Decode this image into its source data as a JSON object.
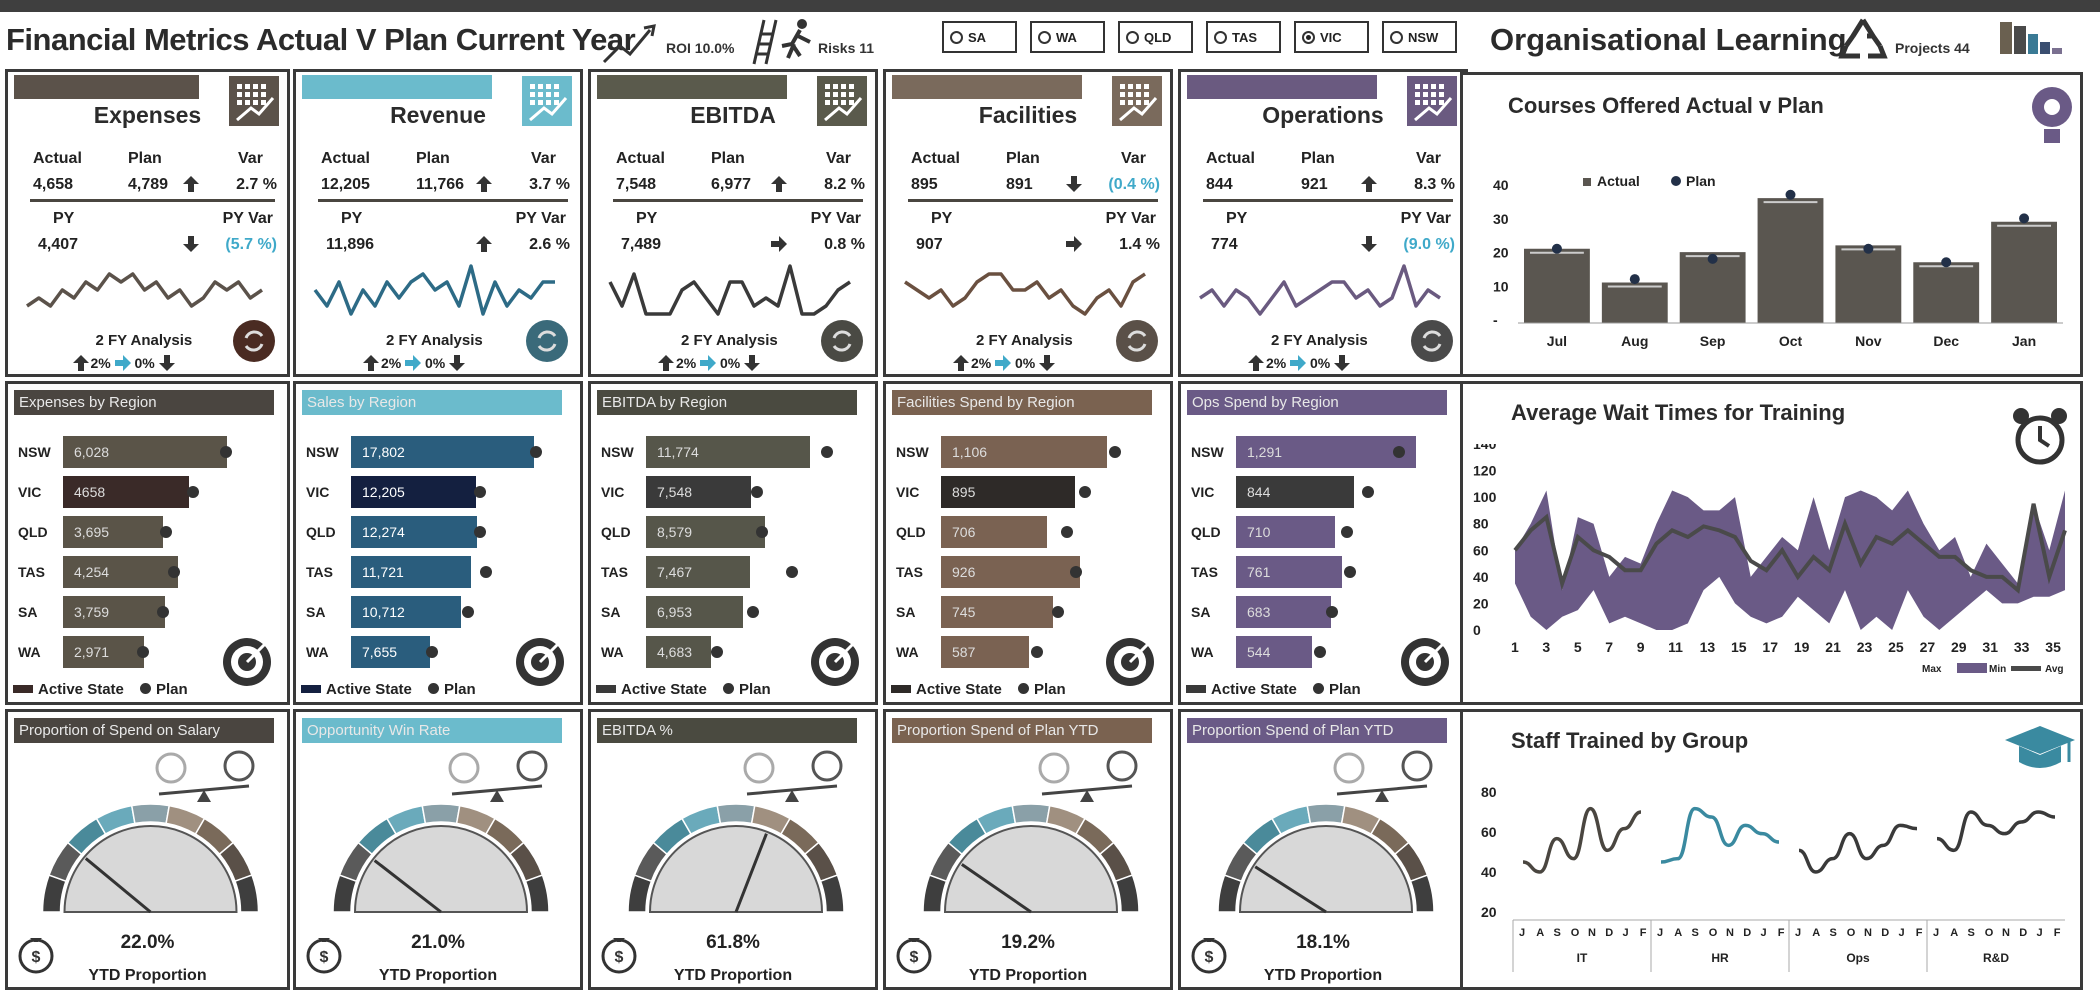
{
  "header": {
    "title": "Financial Metrics Actual V Plan Current Year",
    "roi": "ROI 10.0%",
    "risks": "Risks 11",
    "org_title": "Organisational Learning",
    "projects": "Projects 44",
    "states": [
      {
        "label": "SA",
        "selected": false
      },
      {
        "label": "WA",
        "selected": false
      },
      {
        "label": "QLD",
        "selected": false
      },
      {
        "label": "TAS",
        "selected": false
      },
      {
        "label": "VIC",
        "selected": true
      },
      {
        "label": "NSW",
        "selected": false
      }
    ]
  },
  "labels": {
    "actual": "Actual",
    "plan": "Plan",
    "var": "Var",
    "py": "PY",
    "py_var": "PY Var",
    "analysis": "2 FY Analysis",
    "up_pct": "2%",
    "flat_pct": "0%",
    "active_state": "Active State",
    "plan_legend": "Plan",
    "ytd": "YTD Proportion"
  },
  "kpis": [
    {
      "title": "Expenses",
      "color": "#5b524a",
      "actual": "4,658",
      "plan": "4,789",
      "var": "2.7 %",
      "var_dir": "up",
      "var_teal": false,
      "py": "4,407",
      "py_var": "(5.7 %)",
      "py_dir": "down",
      "py_teal": true,
      "spark": [
        3,
        4,
        3,
        5,
        4,
        6,
        5,
        7,
        6,
        7,
        5,
        6,
        4,
        5,
        3,
        4,
        6,
        5,
        6,
        4,
        5
      ],
      "spark_color": "#5b524a",
      "btn": "#4a2b22"
    },
    {
      "title": "Revenue",
      "color": "#6bbbcc",
      "actual": "12,205",
      "plan": "11,766",
      "var": "3.7 %",
      "var_dir": "up",
      "var_teal": false,
      "py": "11,896",
      "py_var": "2.6 %",
      "py_dir": "up",
      "py_teal": false,
      "spark": [
        5,
        3,
        6,
        2,
        5,
        3,
        6,
        4,
        6,
        7,
        5,
        6,
        3,
        8,
        2,
        6,
        3,
        5,
        4,
        6,
        6
      ],
      "spark_color": "#2d6b86",
      "btn": "#3a6a7a"
    },
    {
      "title": "EBITDA",
      "color": "#5a5a4c",
      "actual": "7,548",
      "plan": "6,977",
      "var": "8.2 %",
      "var_dir": "up",
      "var_teal": false,
      "py": "7,489",
      "py_var": "0.8 %",
      "py_dir": "right",
      "py_teal": false,
      "spark": [
        6,
        3,
        7,
        2,
        2,
        2,
        5,
        6,
        4,
        2,
        6,
        6,
        3,
        4,
        3,
        8,
        2,
        2,
        3,
        5,
        6
      ],
      "spark_color": "#3a3a3a",
      "btn": "#4a4a44"
    },
    {
      "title": "Facilities",
      "color": "#7a6a5c",
      "actual": "895",
      "plan": "891",
      "var": "(0.4 %)",
      "var_dir": "down",
      "var_teal": true,
      "py": "907",
      "py_var": "1.4 %",
      "py_dir": "right",
      "py_teal": false,
      "spark": [
        6,
        5,
        4,
        5,
        3,
        4,
        6,
        7,
        7,
        5,
        5,
        6,
        4,
        5,
        3,
        2,
        4,
        5,
        3,
        6,
        7
      ],
      "spark_color": "#6a5040",
      "btn": "#5a5048"
    },
    {
      "title": "Operations",
      "color": "#6a5a80",
      "actual": "844",
      "plan": "921",
      "var": "8.3 %",
      "var_dir": "up",
      "var_teal": false,
      "py": "774",
      "py_var": "(9.0 %)",
      "py_dir": "down",
      "py_teal": true,
      "spark": [
        4,
        5,
        3,
        5,
        4,
        2,
        4,
        6,
        3,
        4,
        5,
        6,
        6,
        4,
        5,
        3,
        4,
        8,
        3,
        5,
        4
      ],
      "spark_color": "#6a5a80",
      "btn": "#4a4a4a"
    }
  ],
  "regions": [
    {
      "title": "Expenses by Region",
      "hdr": "#4a4540",
      "bar": "#5a5448",
      "active": "#3a2a28",
      "rows": [
        {
          "r": "NSW",
          "v": 6028,
          "t": "6,028",
          "p": 6000
        },
        {
          "r": "VIC",
          "v": 4658,
          "t": 4658,
          "p": 4800
        },
        {
          "r": "QLD",
          "v": 3695,
          "t": "3,695",
          "p": 3800
        },
        {
          "r": "TAS",
          "v": 4254,
          "t": "4,254",
          "p": 4100
        },
        {
          "r": "SA",
          "v": 3759,
          "t": "3,759",
          "p": 3700
        },
        {
          "r": "WA",
          "v": 2971,
          "t": "2,971",
          "p": 2950
        }
      ],
      "max": 7000
    },
    {
      "title": "Sales by Region",
      "hdr": "#6bbbcc",
      "bar": "#2a5d7d",
      "active": "#142040",
      "rows": [
        {
          "r": "NSW",
          "v": 17802,
          "t": "17,802",
          "p": 18000
        },
        {
          "r": "VIC",
          "v": 12205,
          "t": "12,205",
          "p": 12600
        },
        {
          "r": "QLD",
          "v": 12274,
          "t": "12,274",
          "p": 12600
        },
        {
          "r": "TAS",
          "v": 11721,
          "t": "11,721",
          "p": 13200
        },
        {
          "r": "SA",
          "v": 10712,
          "t": "10,712",
          "p": 11400
        },
        {
          "r": "WA",
          "v": 7655,
          "t": "7,655",
          "p": 7900
        }
      ],
      "max": 19000
    },
    {
      "title": "EBITDA by Region",
      "hdr": "#4a4a40",
      "bar": "#56564a",
      "active": "#3a3a3a",
      "rows": [
        {
          "r": "NSW",
          "v": 11774,
          "t": "11,774",
          "p": 13000
        },
        {
          "r": "VIC",
          "v": 7548,
          "t": "7,548",
          "p": 8000
        },
        {
          "r": "QLD",
          "v": 8579,
          "t": "8,579",
          "p": 8300
        },
        {
          "r": "TAS",
          "v": 7467,
          "t": "7,467",
          "p": 10500
        },
        {
          "r": "SA",
          "v": 6953,
          "t": "6,953",
          "p": 7700
        },
        {
          "r": "WA",
          "v": 4683,
          "t": "4,683",
          "p": 5100
        }
      ],
      "max": 14000
    },
    {
      "title": "Facilities Spend by Region",
      "hdr": "#7a6250",
      "bar": "#7a6252",
      "active": "#2e2a28",
      "rows": [
        {
          "r": "NSW",
          "v": 1106,
          "t": "1,106",
          "p": 1160
        },
        {
          "r": "VIC",
          "v": 895,
          "t": "895",
          "p": 960
        },
        {
          "r": "QLD",
          "v": 706,
          "t": "706",
          "p": 840
        },
        {
          "r": "TAS",
          "v": 926,
          "t": "926",
          "p": 900
        },
        {
          "r": "SA",
          "v": 745,
          "t": "745",
          "p": 780
        },
        {
          "r": "WA",
          "v": 587,
          "t": "587",
          "p": 640
        }
      ],
      "max": 1300
    },
    {
      "title": "Ops Spend by Region",
      "hdr": "#6a5a86",
      "bar": "#6a5a86",
      "active": "#3a3a3a",
      "rows": [
        {
          "r": "NSW",
          "v": 1291,
          "t": "1,291",
          "p": 1170
        },
        {
          "r": "VIC",
          "v": 844,
          "t": "844",
          "p": 950
        },
        {
          "r": "QLD",
          "v": 710,
          "t": "710",
          "p": 800
        },
        {
          "r": "TAS",
          "v": 761,
          "t": "761",
          "p": 820
        },
        {
          "r": "SA",
          "v": 683,
          "t": "683",
          "p": 690
        },
        {
          "r": "WA",
          "v": 544,
          "t": "544",
          "p": 600
        }
      ],
      "max": 1400
    }
  ],
  "gauges": [
    {
      "title": "Proportion of Spend on Salary",
      "hdr": "#4a4540",
      "value": "22.0%",
      "fraction": 0.22,
      "accent": "#5b524a"
    },
    {
      "title": "Opportunity Win Rate",
      "hdr": "#6bbbcc",
      "value": "21.0%",
      "fraction": 0.21,
      "accent": "#3a8aa8"
    },
    {
      "title": "EBITDA %",
      "hdr": "#4a4a40",
      "value": "61.8%",
      "fraction": 0.618,
      "accent": "#5a5a4c"
    },
    {
      "title": "Proportion Spend of Plan YTD",
      "hdr": "#7a6250",
      "value": "19.2%",
      "fraction": 0.192,
      "accent": "#7a6252"
    },
    {
      "title": "Proportion Spend of Plan YTD",
      "hdr": "#6a5a86",
      "value": "18.1%",
      "fraction": 0.181,
      "accent": "#6a5a86"
    }
  ],
  "courses": {
    "title": "Courses Offered Actual v Plan",
    "legend_actual": "Actual",
    "legend_plan": "Plan",
    "categories": [
      "Jul",
      "Aug",
      "Sep",
      "Oct",
      "Nov",
      "Dec",
      "Jan"
    ],
    "actual": [
      22,
      12,
      21,
      37,
      23,
      18,
      30
    ],
    "plan": [
      22,
      13,
      19,
      38,
      22,
      18,
      31
    ],
    "yticks": [
      "40",
      "30",
      "20",
      "10",
      "-"
    ]
  },
  "wait": {
    "title": "Average Wait Times for Training",
    "yticks": [
      "140",
      "120",
      "100",
      "80",
      "60",
      "40",
      "20",
      "0"
    ],
    "xticks": [
      "1",
      "3",
      "5",
      "7",
      "9",
      "11",
      "13",
      "15",
      "17",
      "19",
      "21",
      "23",
      "25",
      "27",
      "29",
      "31",
      "33",
      "35"
    ],
    "legend_max": "Max",
    "legend_min": "Min",
    "legend_avg": "Avg",
    "max": [
      60,
      80,
      105,
      30,
      85,
      80,
      40,
      55,
      50,
      80,
      105,
      100,
      90,
      90,
      100,
      40,
      55,
      70,
      60,
      100,
      60,
      100,
      105,
      100,
      90,
      105,
      80,
      60,
      70,
      40,
      65,
      50,
      35,
      95,
      60,
      105
    ],
    "min": [
      35,
      10,
      0,
      10,
      15,
      30,
      5,
      10,
      5,
      0,
      0,
      5,
      30,
      40,
      20,
      10,
      5,
      10,
      25,
      15,
      5,
      30,
      0,
      10,
      0,
      30,
      10,
      0,
      10,
      20,
      30,
      20,
      20,
      25,
      25,
      30
    ],
    "avg": [
      60,
      75,
      85,
      35,
      70,
      60,
      55,
      45,
      45,
      65,
      75,
      70,
      78,
      75,
      70,
      52,
      45,
      60,
      40,
      55,
      45,
      80,
      50,
      70,
      65,
      75,
      65,
      55,
      55,
      45,
      40,
      40,
      30,
      95,
      40,
      75
    ]
  },
  "staff": {
    "title": "Staff Trained by Group",
    "yticks": [
      "80",
      "60",
      "40",
      "20"
    ],
    "months": [
      "J",
      "A",
      "S",
      "O",
      "N",
      "D",
      "J",
      "F"
    ],
    "groups": [
      {
        "name": "IT",
        "color": "#4a4640",
        "values": [
          38,
          32,
          52,
          40,
          70,
          45,
          58,
          68
        ]
      },
      {
        "name": "HR",
        "color": "#3a8aa0",
        "values": [
          38,
          40,
          70,
          65,
          48,
          60,
          55,
          50
        ]
      },
      {
        "name": "Ops",
        "color": "#3a3a3a",
        "values": [
          45,
          32,
          40,
          55,
          40,
          48,
          60,
          58
        ]
      },
      {
        "name": "R&D",
        "color": "#3a3a3a",
        "values": [
          52,
          45,
          68,
          60,
          55,
          62,
          68,
          65
        ]
      }
    ]
  }
}
